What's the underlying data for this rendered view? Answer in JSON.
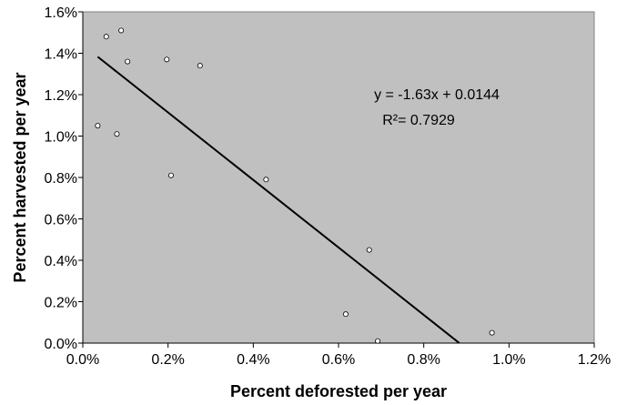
{
  "chart_data": {
    "type": "scatter",
    "xlabel": "Percent deforested per year",
    "ylabel": "Percent harvested per year",
    "xlim": [
      0,
      1.2
    ],
    "ylim": [
      0,
      1.6
    ],
    "x_ticks": [
      "0.0%",
      "0.2%",
      "0.4%",
      "0.6%",
      "0.8%",
      "1.0%",
      "1.2%"
    ],
    "y_ticks": [
      "0.0%",
      "0.2%",
      "0.4%",
      "0.6%",
      "0.8%",
      "1.0%",
      "1.2%",
      "1.4%",
      "1.6%"
    ],
    "grid": false,
    "background_color": "#c0c0c0",
    "point_color": "#ffffff",
    "points": [
      {
        "x": 0.035,
        "y": 1.05
      },
      {
        "x": 0.055,
        "y": 1.48
      },
      {
        "x": 0.08,
        "y": 1.01
      },
      {
        "x": 0.09,
        "y": 1.51
      },
      {
        "x": 0.105,
        "y": 1.36
      },
      {
        "x": 0.197,
        "y": 1.37
      },
      {
        "x": 0.207,
        "y": 0.81
      },
      {
        "x": 0.275,
        "y": 1.34
      },
      {
        "x": 0.43,
        "y": 0.79
      },
      {
        "x": 0.617,
        "y": 0.14
      },
      {
        "x": 0.672,
        "y": 0.45
      },
      {
        "x": 0.692,
        "y": 0.01
      },
      {
        "x": 0.96,
        "y": 0.05
      }
    ],
    "trendline": {
      "slope": -1.63,
      "intercept_percent": 1.44,
      "x_start": 0.035,
      "x_end": 0.883
    },
    "annotations": [
      "y = -1.63x + 0.0144",
      "R²= 0.7929"
    ]
  }
}
